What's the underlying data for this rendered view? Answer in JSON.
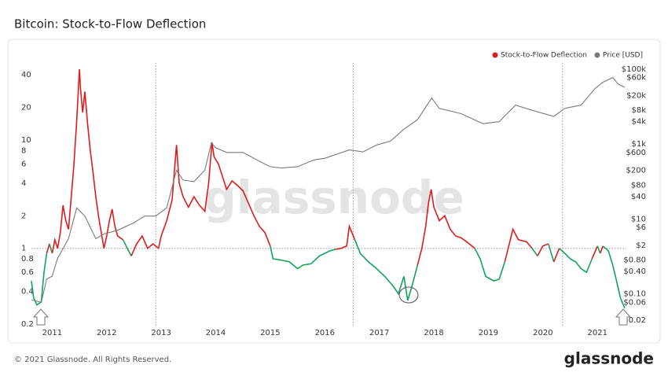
{
  "chart_data": {
    "type": "line",
    "title": "Bitcoin: Stock-to-Flow Deflection",
    "watermark": "glassnode",
    "log_scale": true,
    "grid": false,
    "legend": "top-right",
    "reference_line": 1,
    "colors": {
      "above": "#e01b1b",
      "below": "#12a35c"
    },
    "vertical_lines": [
      2012.9,
      2016.52,
      2020.36
    ],
    "xlim": [
      2010.62,
      2021.53
    ],
    "xticks": [
      2011,
      2012,
      2013,
      2014,
      2015,
      2016,
      2017,
      2018,
      2019,
      2020,
      2021
    ],
    "ylim": [
      0.19,
      72
    ],
    "yticks": [
      0.2,
      0.4,
      0.6,
      0.8,
      1,
      2,
      4,
      6,
      8,
      10,
      20,
      40
    ],
    "y2lim": [
      0.0136,
      387000
    ],
    "y2ticks": [
      {
        "value": 0.02,
        "label": "$0.02"
      },
      {
        "value": 0.06,
        "label": "$0.06"
      },
      {
        "value": 0.1,
        "label": "$0.10"
      },
      {
        "value": 0.4,
        "label": "$0.40"
      },
      {
        "value": 0.8,
        "label": "$0.80"
      },
      {
        "value": 2,
        "label": "$2"
      },
      {
        "value": 6,
        "label": "$6"
      },
      {
        "value": 10,
        "label": "$10"
      },
      {
        "value": 40,
        "label": "$40"
      },
      {
        "value": 80,
        "label": "$80"
      },
      {
        "value": 200,
        "label": "$200"
      },
      {
        "value": 600,
        "label": "$600"
      },
      {
        "value": 1000,
        "label": "$1k"
      },
      {
        "value": 4000,
        "label": "$4k"
      },
      {
        "value": 8000,
        "label": "$8k"
      },
      {
        "value": 20000,
        "label": "$20k"
      },
      {
        "value": 60000,
        "label": "$60k"
      },
      {
        "value": 100000,
        "label": "$100k"
      }
    ],
    "series": [
      {
        "name": "Stock-to-Flow Deflection",
        "color": "#e01b1b",
        "x": [
          2010.62,
          2010.66,
          2010.72,
          2010.8,
          2010.85,
          2010.9,
          2010.95,
          2011.0,
          2011.05,
          2011.1,
          2011.15,
          2011.2,
          2011.25,
          2011.3,
          2011.35,
          2011.4,
          2011.45,
          2011.5,
          2011.52,
          2011.56,
          2011.6,
          2011.65,
          2011.7,
          2011.75,
          2011.8,
          2011.85,
          2011.9,
          2011.95,
          2012.0,
          2012.05,
          2012.1,
          2012.15,
          2012.2,
          2012.3,
          2012.4,
          2012.45,
          2012.55,
          2012.65,
          2012.75,
          2012.85,
          2012.95,
          2013.0,
          2013.1,
          2013.2,
          2013.28,
          2013.33,
          2013.4,
          2013.5,
          2013.6,
          2013.7,
          2013.8,
          2013.87,
          2013.93,
          2013.97,
          2014.05,
          2014.1,
          2014.2,
          2014.3,
          2014.4,
          2014.5,
          2014.6,
          2014.7,
          2014.8,
          2014.9,
          2015.0,
          2015.05,
          2015.2,
          2015.35,
          2015.5,
          2015.6,
          2015.75,
          2015.9,
          2016.0,
          2016.1,
          2016.2,
          2016.3,
          2016.4,
          2016.45,
          2016.55,
          2016.65,
          2016.8,
          2016.95,
          2017.1,
          2017.25,
          2017.35,
          2017.45,
          2017.52,
          2017.6,
          2017.7,
          2017.78,
          2017.85,
          2017.9,
          2017.95,
          2018.0,
          2018.1,
          2018.2,
          2018.3,
          2018.4,
          2018.5,
          2018.6,
          2018.75,
          2018.85,
          2018.95,
          2019.1,
          2019.2,
          2019.3,
          2019.45,
          2019.55,
          2019.7,
          2019.8,
          2019.9,
          2020.0,
          2020.1,
          2020.2,
          2020.3,
          2020.4,
          2020.5,
          2020.6,
          2020.7,
          2020.8,
          2020.9,
          2021.0,
          2021.05,
          2021.1,
          2021.2,
          2021.28,
          2021.35,
          2021.42,
          2021.5
        ],
        "values": [
          0.5,
          0.35,
          0.3,
          0.32,
          0.6,
          0.9,
          1.1,
          0.9,
          1.2,
          1.0,
          1.4,
          2.5,
          1.8,
          1.5,
          3.0,
          6.0,
          15,
          45,
          30,
          18,
          28,
          14,
          8,
          5,
          3,
          2,
          1.4,
          1.0,
          1.3,
          1.8,
          2.3,
          1.6,
          1.3,
          1.2,
          0.95,
          0.85,
          1.1,
          1.3,
          1.0,
          1.1,
          1.0,
          1.3,
          1.8,
          2.8,
          9,
          4,
          3,
          2.4,
          3,
          2.5,
          2.2,
          4,
          9.5,
          7,
          6,
          5,
          3.5,
          4.2,
          3.8,
          3.4,
          2.6,
          2.0,
          1.6,
          1.4,
          1.05,
          0.8,
          0.78,
          0.75,
          0.65,
          0.7,
          0.72,
          0.85,
          0.9,
          0.95,
          0.98,
          1.0,
          1.05,
          1.6,
          1.2,
          0.9,
          0.75,
          0.65,
          0.55,
          0.45,
          0.38,
          0.55,
          0.33,
          0.45,
          0.7,
          1.0,
          1.6,
          2.6,
          3.5,
          2.4,
          1.8,
          2.0,
          1.5,
          1.3,
          1.25,
          1.15,
          1.0,
          0.8,
          0.55,
          0.5,
          0.52,
          0.75,
          1.5,
          1.2,
          1.15,
          1.0,
          0.85,
          1.05,
          1.1,
          0.75,
          1.0,
          0.9,
          0.8,
          0.75,
          0.65,
          0.6,
          0.8,
          1.05,
          0.9,
          1.05,
          0.95,
          0.7,
          0.5,
          0.35,
          0.28
        ]
      },
      {
        "name": "Price [USD]",
        "color": "#7a7a7a",
        "axis": "y2",
        "x": [
          2010.62,
          2010.8,
          2010.9,
          2011.0,
          2011.1,
          2011.3,
          2011.45,
          2011.6,
          2011.8,
          2011.95,
          2012.2,
          2012.5,
          2012.7,
          2012.9,
          2013.1,
          2013.28,
          2013.4,
          2013.6,
          2013.8,
          2013.92,
          2014.0,
          2014.2,
          2014.5,
          2014.8,
          2015.0,
          2015.2,
          2015.5,
          2015.8,
          2016.0,
          2016.45,
          2016.7,
          2016.95,
          2017.2,
          2017.45,
          2017.7,
          2017.96,
          2018.1,
          2018.5,
          2018.9,
          2019.2,
          2019.5,
          2019.8,
          2020.2,
          2020.4,
          2020.7,
          2020.95,
          2021.1,
          2021.28,
          2021.38,
          2021.5
        ],
        "values": [
          0.07,
          0.06,
          0.25,
          0.3,
          0.9,
          3,
          20,
          12,
          3,
          4,
          5,
          8,
          12,
          12,
          20,
          200,
          110,
          100,
          200,
          1100,
          800,
          600,
          600,
          350,
          250,
          230,
          250,
          380,
          420,
          700,
          620,
          950,
          1200,
          2500,
          4500,
          17000,
          9000,
          6500,
          3500,
          4000,
          11000,
          8000,
          5500,
          9000,
          11000,
          30000,
          45000,
          60000,
          40000,
          33000
        ]
      }
    ]
  },
  "footer": {
    "copyright": "© 2021 Glassnode. All Rights Reserved.",
    "logo": "glassnode"
  }
}
